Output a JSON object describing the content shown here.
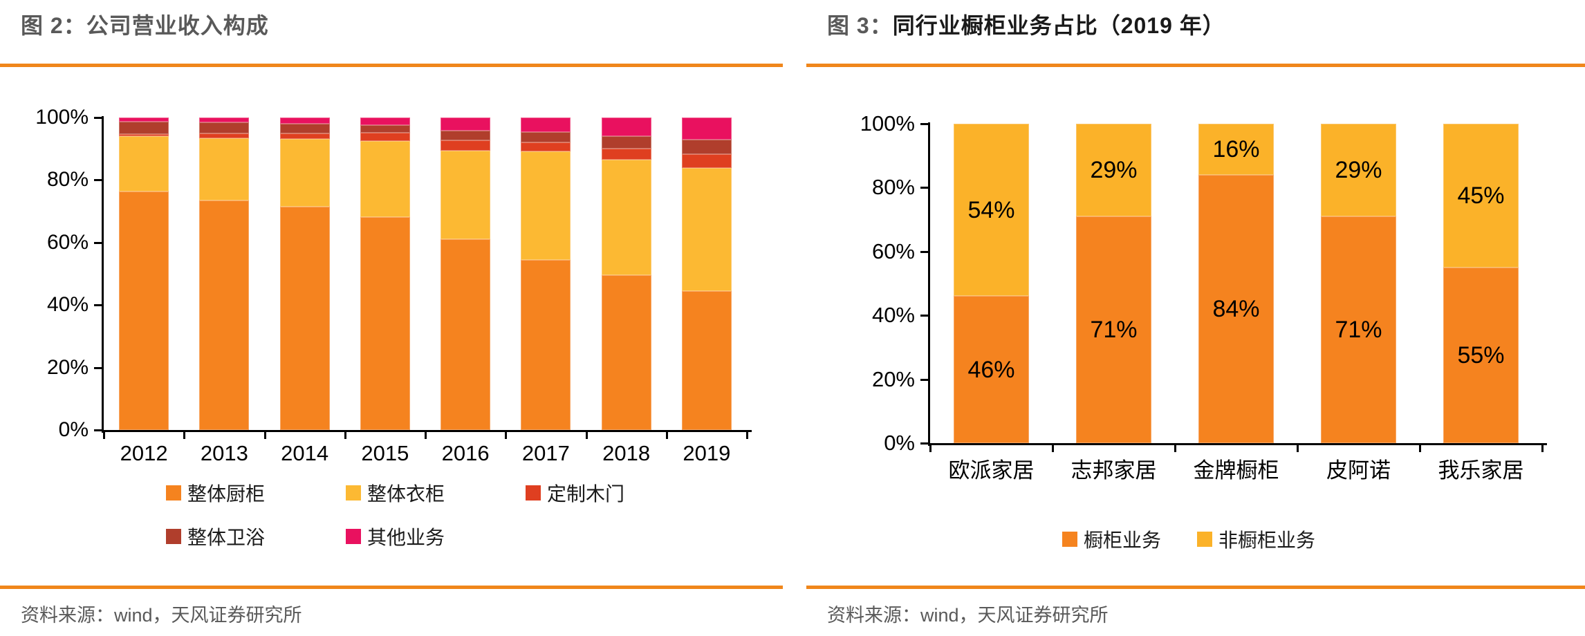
{
  "panels": {
    "left": {
      "title_prefix": "图 2：",
      "title_text": "公司营业收入构成",
      "source_label": "资料来源：",
      "source_text": "wind，天风证券研究所"
    },
    "right": {
      "title_prefix": "图 3：",
      "title_text": "同行业橱柜业务占比（2019 年）",
      "source_label": "资料来源：",
      "source_text": "wind，天风证券研究所"
    }
  },
  "colors": {
    "accent_rule": "#F0861B",
    "title_gray": "#595959",
    "text_black": "#1a1a1a",
    "axis_black": "#000000",
    "orange": "#F5831F",
    "yellow_left": "#FCB933",
    "yellow_right": "#FBB229",
    "red": "#DF3F20",
    "brown": "#B03E2C",
    "pink": "#E9115F"
  },
  "chart_data": [
    {
      "id": "revenue-composition",
      "type": "bar",
      "stacked": true,
      "unit": "%",
      "title": "公司营业收入构成",
      "categories": [
        "2012",
        "2013",
        "2014",
        "2015",
        "2016",
        "2017",
        "2018",
        "2019"
      ],
      "series": [
        {
          "name": "整体厨柜",
          "color": "#F5831F",
          "values": [
            76.3,
            73.5,
            71.5,
            68.1,
            61.0,
            54.5,
            49.5,
            44.5
          ]
        },
        {
          "name": "整体衣柜",
          "color": "#FCB933",
          "values": [
            17.8,
            19.8,
            21.6,
            24.3,
            28.4,
            34.6,
            36.9,
            39.3
          ]
        },
        {
          "name": "定制木门",
          "color": "#DF3F20",
          "values": [
            0.6,
            1.7,
            1.9,
            2.8,
            3.4,
            3.0,
            3.6,
            4.5
          ]
        },
        {
          "name": "整体卫浴",
          "color": "#B03E2C",
          "values": [
            4.0,
            3.5,
            3.1,
            2.3,
            3.1,
            3.3,
            4.0,
            4.6
          ]
        },
        {
          "name": "其他业务",
          "color": "#E9115F",
          "values": [
            1.3,
            1.5,
            1.9,
            2.5,
            4.1,
            4.6,
            6.0,
            7.1
          ]
        }
      ],
      "ylim": [
        0,
        100
      ],
      "ytick_step": 20,
      "grid": false,
      "legend_position": "bottom",
      "show_bar_labels": false,
      "legend_rows": [
        [
          "整体厨柜",
          "整体衣柜",
          "定制木门"
        ],
        [
          "整体卫浴",
          "其他业务"
        ]
      ]
    },
    {
      "id": "cabinet-business-share-2019",
      "type": "bar",
      "stacked": true,
      "unit": "%",
      "title": "同行业橱柜业务占比（2019 年）",
      "categories": [
        "欧派家居",
        "志邦家居",
        "金牌橱柜",
        "皮阿诺",
        "我乐家居"
      ],
      "series": [
        {
          "name": "橱柜业务",
          "color": "#F5831F",
          "values": [
            46,
            71,
            84,
            71,
            55
          ]
        },
        {
          "name": "非橱柜业务",
          "color": "#FBB229",
          "values": [
            54,
            29,
            16,
            29,
            45
          ]
        }
      ],
      "ylim": [
        0,
        100
      ],
      "ytick_step": 20,
      "grid": false,
      "legend_position": "bottom",
      "show_bar_labels": true,
      "legend_rows": [
        [
          "橱柜业务",
          "非橱柜业务"
        ]
      ]
    }
  ]
}
